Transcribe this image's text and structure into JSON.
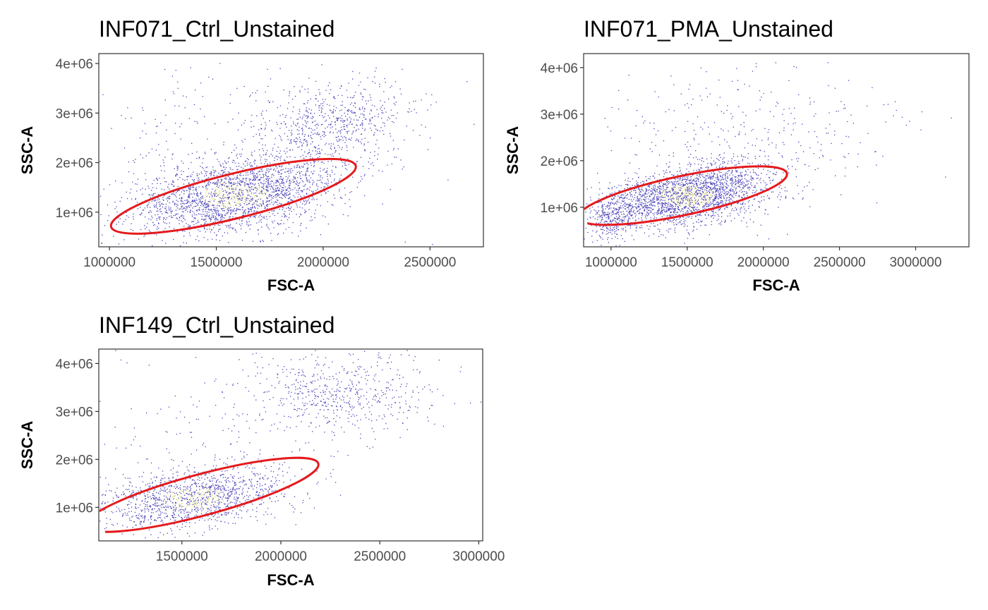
{
  "colors": {
    "point": "#4b44b8",
    "point_dense": "#e8e39a",
    "gate": "#e41a1c",
    "frame": "#333333",
    "tick_label": "#4d4d4d"
  },
  "chart_data": [
    {
      "type": "scatter",
      "title": "INF071_Ctrl_Unstained",
      "xlabel": "FSC-A",
      "ylabel": "SSC-A",
      "xlim": [
        950000,
        2750000
      ],
      "ylim": [
        300000,
        4200000
      ],
      "xticks": [
        1000000,
        1500000,
        2000000,
        2500000
      ],
      "xtick_labels": [
        "1000000",
        "1500000",
        "2000000",
        "2500000"
      ],
      "yticks": [
        1000000,
        2000000,
        3000000,
        4000000
      ],
      "ytick_labels": [
        "1e+06",
        "2e+06",
        "3e+06",
        "4e+06"
      ],
      "clusters": [
        {
          "cx": 1580000,
          "cy": 1350000,
          "sx": 230000,
          "sy": 380000,
          "rho": 0.35,
          "n": 2200
        },
        {
          "cx": 2050000,
          "cy": 2750000,
          "sx": 180000,
          "sy": 450000,
          "rho": 0.2,
          "n": 650
        },
        {
          "cx": 1500000,
          "cy": 2200000,
          "sx": 400000,
          "sy": 900000,
          "rho": 0.1,
          "n": 350
        }
      ],
      "gate": {
        "cx": 1580000,
        "cy": 1320000,
        "rx": 590000,
        "ry": 450000,
        "angle_deg": -14
      }
    },
    {
      "type": "scatter",
      "title": "INF071_PMA_Unstained",
      "xlabel": "FSC-A",
      "ylabel": "SSC-A",
      "xlim": [
        820000,
        3350000
      ],
      "ylim": [
        150000,
        4300000
      ],
      "xticks": [
        1000000,
        1500000,
        2000000,
        2500000,
        3000000
      ],
      "xtick_labels": [
        "1000000",
        "1500000",
        "2000000",
        "2500000",
        "3000000"
      ],
      "yticks": [
        1000000,
        2000000,
        3000000,
        4000000
      ],
      "ytick_labels": [
        "1e+06",
        "2e+06",
        "3e+06",
        "4e+06"
      ],
      "clusters": [
        {
          "cx": 1500000,
          "cy": 1250000,
          "sx": 250000,
          "sy": 330000,
          "rho": 0.35,
          "n": 2300
        },
        {
          "cx": 1000000,
          "cy": 800000,
          "sx": 80000,
          "sy": 250000,
          "rho": 0.1,
          "n": 300
        },
        {
          "cx": 1900000,
          "cy": 2500000,
          "sx": 500000,
          "sy": 800000,
          "rho": 0.2,
          "n": 350
        }
      ],
      "gate": {
        "cx": 1470000,
        "cy": 1250000,
        "rx": 700000,
        "ry": 420000,
        "angle_deg": -12
      }
    },
    {
      "type": "scatter",
      "title": "INF149_Ctrl_Unstained",
      "xlabel": "FSC-A",
      "ylabel": "SSC-A",
      "xlim": [
        1080000,
        3020000
      ],
      "ylim": [
        300000,
        4300000
      ],
      "xticks": [
        1500000,
        2000000,
        2500000,
        3000000
      ],
      "xtick_labels": [
        "1500000",
        "2000000",
        "2500000",
        "3000000"
      ],
      "yticks": [
        1000000,
        2000000,
        3000000,
        4000000
      ],
      "ytick_labels": [
        "1e+06",
        "2e+06",
        "3e+06",
        "4e+06"
      ],
      "clusters": [
        {
          "cx": 1550000,
          "cy": 1200000,
          "sx": 230000,
          "sy": 330000,
          "rho": 0.35,
          "n": 1400
        },
        {
          "cx": 2300000,
          "cy": 3400000,
          "sx": 250000,
          "sy": 450000,
          "rho": 0.1,
          "n": 600
        },
        {
          "cx": 1500000,
          "cy": 2500000,
          "sx": 400000,
          "sy": 900000,
          "rho": 0.0,
          "n": 150
        }
      ],
      "gate": {
        "cx": 1600000,
        "cy": 1260000,
        "rx": 610000,
        "ry": 430000,
        "angle_deg": -15
      }
    }
  ]
}
